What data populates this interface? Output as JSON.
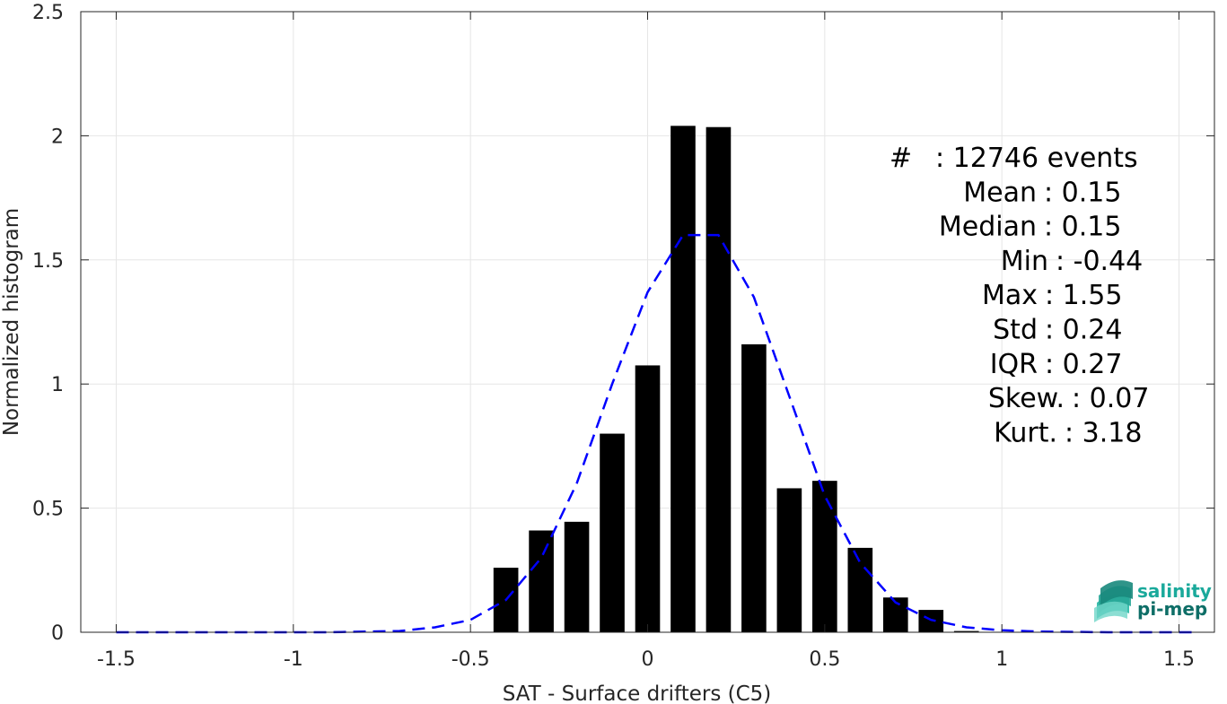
{
  "chart_data": {
    "type": "bar",
    "xlabel": "SAT - Surface drifters (C5)",
    "ylabel": "Normalized histogram",
    "xlim": [
      -1.6,
      1.6
    ],
    "ylim": [
      0,
      2.5
    ],
    "xticks": [
      -1.5,
      -1,
      -0.5,
      0,
      0.5,
      1,
      1.5
    ],
    "xtick_labels": [
      "-1.5",
      "-1",
      "-0.5",
      "0",
      "0.5",
      "1",
      "1.5"
    ],
    "yticks": [
      0,
      0.5,
      1,
      1.5,
      2,
      2.5
    ],
    "ytick_labels": [
      "0",
      "0.5",
      "1",
      "1.5",
      "2",
      "2.5"
    ],
    "grid": true,
    "bar_width": 0.07,
    "bar_color": "#000000",
    "bars": [
      {
        "x": -0.4,
        "y": 0.26
      },
      {
        "x": -0.3,
        "y": 0.41
      },
      {
        "x": -0.2,
        "y": 0.445
      },
      {
        "x": -0.1,
        "y": 0.8
      },
      {
        "x": 0.0,
        "y": 1.075
      },
      {
        "x": 0.1,
        "y": 2.04
      },
      {
        "x": 0.2,
        "y": 2.035
      },
      {
        "x": 0.3,
        "y": 1.16
      },
      {
        "x": 0.4,
        "y": 0.58
      },
      {
        "x": 0.5,
        "y": 0.61
      },
      {
        "x": 0.6,
        "y": 0.34
      },
      {
        "x": 0.7,
        "y": 0.14
      },
      {
        "x": 0.8,
        "y": 0.09
      },
      {
        "x": 0.9,
        "y": 0.005
      }
    ],
    "fit_curve": {
      "style": "dashed",
      "color": "#0000ff",
      "x": [
        -1.5,
        -1.3,
        -1.1,
        -0.9,
        -0.7,
        -0.6,
        -0.5,
        -0.4,
        -0.3,
        -0.2,
        -0.1,
        0.0,
        0.1,
        0.2,
        0.3,
        0.4,
        0.5,
        0.6,
        0.7,
        0.8,
        0.9,
        1.0,
        1.1,
        1.3,
        1.55
      ],
      "y": [
        0.0,
        0.0,
        0.0,
        0.0,
        0.005,
        0.02,
        0.05,
        0.13,
        0.3,
        0.6,
        1.0,
        1.37,
        1.6,
        1.6,
        1.35,
        0.95,
        0.55,
        0.28,
        0.12,
        0.05,
        0.02,
        0.008,
        0.003,
        0.0,
        0.0
      ]
    },
    "stats": [
      {
        "label": "#",
        "value": ": 12746 events"
      },
      {
        "label": "Mean",
        "value": ": 0.15"
      },
      {
        "label": "Median",
        "value": ": 0.15"
      },
      {
        "label": "Min",
        "value": ": -0.44"
      },
      {
        "label": "Max",
        "value": ": 1.55"
      },
      {
        "label": "Std",
        "value": ": 0.24"
      },
      {
        "label": "IQR",
        "value": ": 0.27"
      },
      {
        "label": "Skew.",
        "value": ": 0.07"
      },
      {
        "label": "Kurt.",
        "value": ": 3.18"
      }
    ]
  },
  "logo": {
    "line1": "salinity",
    "line2": "pi-mep",
    "color1": "#1aa99b",
    "color2": "#0e6e67"
  }
}
